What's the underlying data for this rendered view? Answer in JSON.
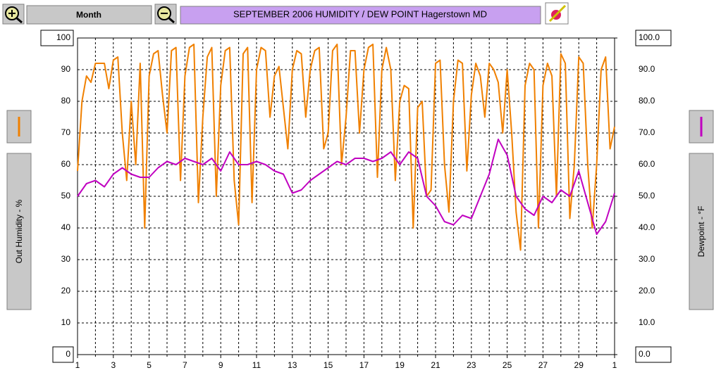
{
  "toolbar": {
    "period_button": "Month"
  },
  "chart_data": {
    "type": "line",
    "title": "SEPTEMBER  2006  HUMIDITY / DEW POINT  Hagerstown MD",
    "ylabel": "Out Humidity - %",
    "y2label": "Dewpoint - °F",
    "xlim": [
      1,
      31
    ],
    "xticks": [
      1,
      3,
      5,
      7,
      9,
      11,
      13,
      15,
      17,
      19,
      21,
      23,
      25,
      27,
      29,
      {
        "value": 31,
        "label": "1"
      }
    ],
    "x_minor_ticks": [
      2,
      4,
      6,
      8,
      10,
      12,
      14,
      16,
      18,
      20,
      22,
      24,
      26,
      28,
      30
    ],
    "ylim": [
      0,
      100
    ],
    "yticks": [
      0,
      10,
      20,
      30,
      40,
      50,
      60,
      70,
      80,
      90,
      100
    ],
    "y2lim": [
      0,
      100
    ],
    "y2ticks": [
      {
        "value": 0,
        "label": "0.0"
      },
      {
        "value": 10,
        "label": "10.0"
      },
      {
        "value": 20,
        "label": "20.0"
      },
      {
        "value": 30,
        "label": "30.0"
      },
      {
        "value": 40,
        "label": "40.0"
      },
      {
        "value": 50,
        "label": "50.0"
      },
      {
        "value": 60,
        "label": "60.0"
      },
      {
        "value": 70,
        "label": "70.0"
      },
      {
        "value": 80,
        "label": "80.0"
      },
      {
        "value": 90,
        "label": "90.0"
      },
      {
        "value": 100,
        "label": "100.0"
      }
    ],
    "grid": true,
    "series": [
      {
        "name": "Out Humidity",
        "color": "#f08000",
        "axis": "y",
        "x": [
          1,
          1.25,
          1.5,
          1.75,
          2,
          2.25,
          2.5,
          2.75,
          3,
          3.25,
          3.5,
          3.75,
          4,
          4.25,
          4.5,
          4.75,
          5,
          5.25,
          5.5,
          5.75,
          6,
          6.25,
          6.5,
          6.75,
          7,
          7.25,
          7.5,
          7.75,
          8,
          8.25,
          8.5,
          8.75,
          9,
          9.25,
          9.5,
          9.75,
          10,
          10.25,
          10.5,
          10.75,
          11,
          11.25,
          11.5,
          11.75,
          12,
          12.25,
          12.5,
          12.75,
          13,
          13.25,
          13.5,
          13.75,
          14,
          14.25,
          14.5,
          14.75,
          15,
          15.25,
          15.5,
          15.75,
          16,
          16.25,
          16.5,
          16.75,
          17,
          17.25,
          17.5,
          17.75,
          18,
          18.25,
          18.5,
          18.75,
          19,
          19.25,
          19.5,
          19.75,
          20,
          20.25,
          20.5,
          20.75,
          21,
          21.25,
          21.5,
          21.75,
          22,
          22.25,
          22.5,
          22.75,
          23,
          23.25,
          23.5,
          23.75,
          24,
          24.25,
          24.5,
          24.75,
          25,
          25.25,
          25.5,
          25.75,
          26,
          26.25,
          26.5,
          26.75,
          27,
          27.25,
          27.5,
          27.75,
          28,
          28.25,
          28.5,
          28.75,
          29,
          29.25,
          29.5,
          29.75,
          30,
          30.25,
          30.5,
          30.75,
          31
        ],
        "values": [
          58,
          80,
          88,
          86,
          92,
          92,
          92,
          84,
          93,
          94,
          70,
          55,
          80,
          60,
          92,
          40,
          88,
          95,
          96,
          82,
          70,
          96,
          97,
          55,
          88,
          97,
          98,
          48,
          75,
          94,
          97,
          50,
          85,
          96,
          97,
          55,
          41,
          95,
          97,
          48,
          90,
          97,
          96,
          75,
          88,
          91,
          78,
          65,
          90,
          96,
          95,
          75,
          90,
          96,
          97,
          65,
          70,
          96,
          98,
          60,
          75,
          96,
          96,
          70,
          90,
          97,
          98,
          56,
          90,
          97,
          90,
          55,
          80,
          85,
          84,
          40,
          78,
          80,
          50,
          52,
          92,
          93,
          60,
          45,
          80,
          93,
          92,
          58,
          82,
          92,
          88,
          75,
          92,
          90,
          86,
          70,
          90,
          70,
          45,
          33,
          85,
          92,
          90,
          40,
          85,
          92,
          88,
          50,
          95,
          92,
          43,
          60,
          94,
          92,
          60,
          40,
          60,
          90,
          94,
          65,
          72
        ]
      },
      {
        "name": "Dewpoint",
        "color": "#c000c0",
        "axis": "y2",
        "x": [
          1,
          1.5,
          2,
          2.5,
          3,
          3.5,
          4,
          4.5,
          5,
          5.5,
          6,
          6.5,
          7,
          7.5,
          8,
          8.5,
          9,
          9.5,
          10,
          10.5,
          11,
          11.5,
          12,
          12.5,
          13,
          13.5,
          14,
          14.5,
          15,
          15.5,
          16,
          16.5,
          17,
          17.5,
          18,
          18.5,
          19,
          19.5,
          20,
          20.5,
          21,
          21.5,
          22,
          22.5,
          23,
          23.5,
          24,
          24.5,
          25,
          25.5,
          26,
          26.5,
          27,
          27.5,
          28,
          28.5,
          29,
          29.5,
          30,
          30.5,
          31
        ],
        "values": [
          50,
          54,
          55,
          53,
          57,
          59,
          57,
          56,
          56,
          59,
          61,
          60,
          62,
          61,
          60,
          62,
          58,
          64,
          60,
          60,
          61,
          60,
          58,
          57,
          51,
          52,
          55,
          57,
          59,
          61,
          60,
          62,
          62,
          61,
          62,
          64,
          60,
          64,
          62,
          50,
          47,
          42,
          41,
          44,
          43,
          50,
          57,
          68,
          63,
          50,
          46,
          44,
          50,
          48,
          52,
          50,
          58,
          48,
          38,
          42,
          51
        ]
      }
    ]
  }
}
